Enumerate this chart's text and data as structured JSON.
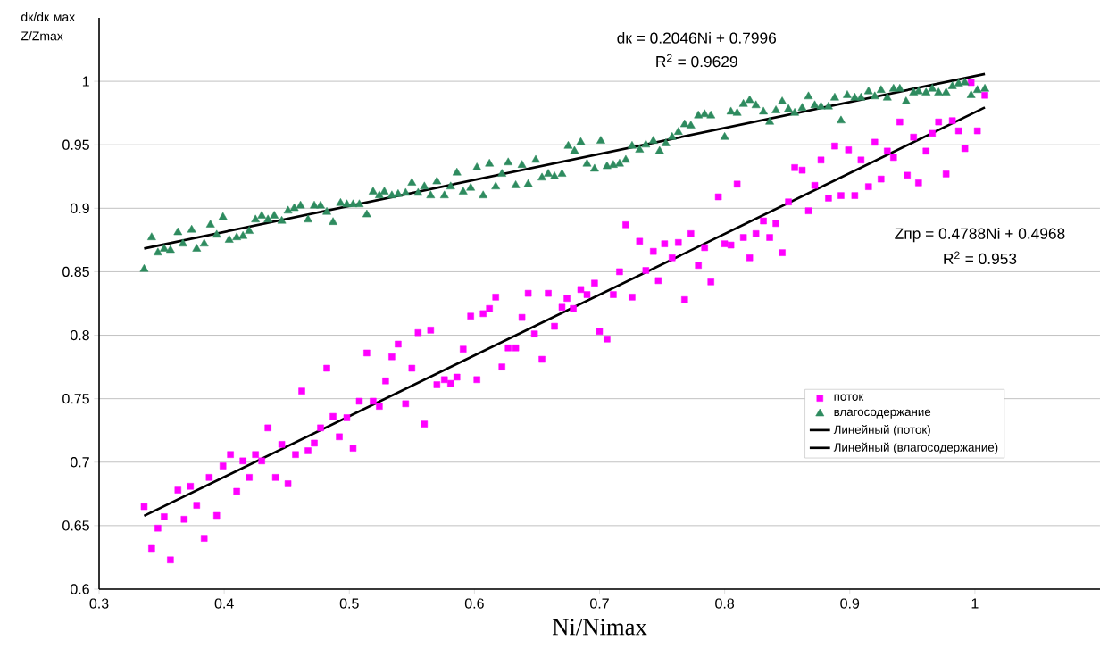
{
  "chart_data": {
    "type": "scatter",
    "xlabel": "Ni/Nimax",
    "ylabel": "dк/dк мах Z/Zmax",
    "xlim": [
      0.3,
      1.1
    ],
    "ylim": [
      0.6,
      1.05
    ],
    "xticks": [
      0.3,
      0.4,
      0.5,
      0.6,
      0.7,
      0.8,
      0.9,
      1
    ],
    "yticks": [
      0.6,
      0.65,
      0.7,
      0.75,
      0.8,
      0.85,
      0.9,
      0.95,
      1
    ],
    "grid": "y",
    "legend": "right",
    "annotations": [
      "dк = 0.2046Ni + 0.7996",
      "R$^{2}$ = 0.9629",
      "Zпр = 0.4788Ni + 0.4968",
      "R$^{2}$ = 0.953"
    ],
    "series": [
      {
        "name": "поток",
        "marker": "square",
        "color": "#ff00ff",
        "x": [
          0.336,
          0.342,
          0.347,
          0.352,
          0.357,
          0.363,
          0.368,
          0.373,
          0.378,
          0.384,
          0.388,
          0.394,
          0.399,
          0.405,
          0.41,
          0.415,
          0.42,
          0.425,
          0.43,
          0.435,
          0.441,
          0.446,
          0.451,
          0.457,
          0.462,
          0.467,
          0.472,
          0.477,
          0.482,
          0.487,
          0.492,
          0.498,
          0.503,
          0.508,
          0.514,
          0.519,
          0.524,
          0.529,
          0.534,
          0.539,
          0.545,
          0.55,
          0.555,
          0.56,
          0.565,
          0.57,
          0.576,
          0.581,
          0.586,
          0.591,
          0.597,
          0.602,
          0.607,
          0.612,
          0.617,
          0.622,
          0.627,
          0.633,
          0.638,
          0.643,
          0.648,
          0.654,
          0.659,
          0.664,
          0.67,
          0.674,
          0.679,
          0.685,
          0.69,
          0.696,
          0.7,
          0.706,
          0.711,
          0.716,
          0.721,
          0.726,
          0.732,
          0.737,
          0.743,
          0.747,
          0.752,
          0.758,
          0.763,
          0.768,
          0.773,
          0.779,
          0.784,
          0.789,
          0.795,
          0.8,
          0.805,
          0.81,
          0.815,
          0.82,
          0.825,
          0.831,
          0.836,
          0.841,
          0.846,
          0.851,
          0.856,
          0.862,
          0.867,
          0.872,
          0.877,
          0.883,
          0.888,
          0.893,
          0.899,
          0.904,
          0.909,
          0.915,
          0.92,
          0.925,
          0.93,
          0.935,
          0.94,
          0.946,
          0.951,
          0.955,
          0.961,
          0.966,
          0.971,
          0.977,
          0.982,
          0.987,
          0.992,
          0.997,
          1.002,
          1.008
        ],
        "values": [
          0.665,
          0.632,
          0.648,
          0.657,
          0.623,
          0.678,
          0.655,
          0.681,
          0.666,
          0.64,
          0.688,
          0.658,
          0.697,
          0.706,
          0.677,
          0.701,
          0.688,
          0.706,
          0.701,
          0.727,
          0.688,
          0.714,
          0.683,
          0.706,
          0.756,
          0.709,
          0.715,
          0.727,
          0.774,
          0.736,
          0.72,
          0.735,
          0.711,
          0.748,
          0.786,
          0.748,
          0.744,
          0.764,
          0.783,
          0.793,
          0.746,
          0.774,
          0.802,
          0.73,
          0.804,
          0.761,
          0.765,
          0.762,
          0.767,
          0.789,
          0.815,
          0.765,
          0.817,
          0.821,
          0.83,
          0.775,
          0.79,
          0.79,
          0.814,
          0.833,
          0.801,
          0.781,
          0.833,
          0.807,
          0.822,
          0.829,
          0.821,
          0.836,
          0.832,
          0.841,
          0.803,
          0.797,
          0.832,
          0.85,
          0.887,
          0.83,
          0.874,
          0.851,
          0.866,
          0.843,
          0.872,
          0.861,
          0.873,
          0.828,
          0.88,
          0.855,
          0.869,
          0.842,
          0.909,
          0.872,
          0.871,
          0.919,
          0.877,
          0.861,
          0.88,
          0.89,
          0.877,
          0.888,
          0.865,
          0.905,
          0.932,
          0.93,
          0.898,
          0.918,
          0.938,
          0.908,
          0.949,
          0.91,
          0.946,
          0.91,
          0.938,
          0.917,
          0.952,
          0.923,
          0.945,
          0.94,
          0.968,
          0.926,
          0.956,
          0.92,
          0.945,
          0.959,
          0.968,
          0.927,
          0.969,
          0.961,
          0.947,
          0.999,
          0.961,
          0.989
        ]
      },
      {
        "name": "влагосодержание",
        "marker": "triangle",
        "color": "#2e8b5f",
        "x": [
          0.336,
          0.342,
          0.347,
          0.352,
          0.357,
          0.363,
          0.367,
          0.374,
          0.378,
          0.384,
          0.389,
          0.394,
          0.399,
          0.404,
          0.41,
          0.415,
          0.42,
          0.425,
          0.43,
          0.435,
          0.44,
          0.446,
          0.451,
          0.456,
          0.461,
          0.467,
          0.472,
          0.477,
          0.482,
          0.487,
          0.493,
          0.498,
          0.503,
          0.508,
          0.514,
          0.519,
          0.524,
          0.528,
          0.534,
          0.539,
          0.545,
          0.55,
          0.555,
          0.56,
          0.565,
          0.57,
          0.576,
          0.581,
          0.586,
          0.591,
          0.597,
          0.602,
          0.607,
          0.612,
          0.617,
          0.622,
          0.627,
          0.633,
          0.638,
          0.643,
          0.649,
          0.654,
          0.659,
          0.664,
          0.67,
          0.675,
          0.68,
          0.685,
          0.69,
          0.696,
          0.701,
          0.706,
          0.711,
          0.716,
          0.721,
          0.726,
          0.732,
          0.737,
          0.743,
          0.748,
          0.753,
          0.758,
          0.763,
          0.768,
          0.773,
          0.779,
          0.784,
          0.789,
          0.8,
          0.805,
          0.81,
          0.815,
          0.82,
          0.825,
          0.831,
          0.836,
          0.841,
          0.846,
          0.851,
          0.856,
          0.862,
          0.867,
          0.872,
          0.877,
          0.883,
          0.888,
          0.893,
          0.898,
          0.904,
          0.909,
          0.915,
          0.92,
          0.925,
          0.93,
          0.935,
          0.94,
          0.945,
          0.951,
          0.955,
          0.961,
          0.966,
          0.971,
          0.977,
          0.982,
          0.987,
          0.992,
          0.997,
          1.002,
          1.008
        ],
        "values": [
          0.852,
          0.877,
          0.865,
          0.868,
          0.867,
          0.881,
          0.872,
          0.883,
          0.868,
          0.872,
          0.887,
          0.879,
          0.893,
          0.875,
          0.877,
          0.878,
          0.882,
          0.891,
          0.894,
          0.891,
          0.894,
          0.89,
          0.898,
          0.9,
          0.902,
          0.891,
          0.902,
          0.902,
          0.897,
          0.889,
          0.904,
          0.903,
          0.903,
          0.903,
          0.895,
          0.913,
          0.91,
          0.913,
          0.91,
          0.911,
          0.912,
          0.92,
          0.912,
          0.917,
          0.91,
          0.921,
          0.91,
          0.917,
          0.928,
          0.913,
          0.916,
          0.932,
          0.91,
          0.935,
          0.917,
          0.927,
          0.936,
          0.918,
          0.934,
          0.919,
          0.938,
          0.924,
          0.927,
          0.925,
          0.927,
          0.949,
          0.945,
          0.952,
          0.935,
          0.931,
          0.953,
          0.933,
          0.934,
          0.935,
          0.938,
          0.949,
          0.946,
          0.95,
          0.953,
          0.945,
          0.951,
          0.956,
          0.96,
          0.966,
          0.965,
          0.973,
          0.974,
          0.973,
          0.956,
          0.976,
          0.975,
          0.982,
          0.985,
          0.981,
          0.976,
          0.968,
          0.977,
          0.984,
          0.978,
          0.975,
          0.979,
          0.988,
          0.981,
          0.98,
          0.98,
          0.987,
          0.969,
          0.989,
          0.987,
          0.987,
          0.992,
          0.988,
          0.993,
          0.987,
          0.994,
          0.994,
          0.984,
          0.991,
          0.992,
          0.991,
          0.994,
          0.991,
          0.991,
          0.996,
          0.998,
          0.999,
          0.989,
          0.993,
          0.994
        ]
      },
      {
        "name": "Линейный (поток)",
        "type": "line",
        "marker": "none",
        "color": "#000000",
        "x": [
          0.336,
          1.008
        ],
        "values": [
          0.6577,
          0.9794
        ]
      },
      {
        "name": "Линейный (влагосодержание)",
        "type": "line",
        "marker": "none",
        "color": "#000000",
        "x": [
          0.336,
          1.008
        ],
        "values": [
          0.8683,
          1.0058
        ]
      }
    ]
  }
}
